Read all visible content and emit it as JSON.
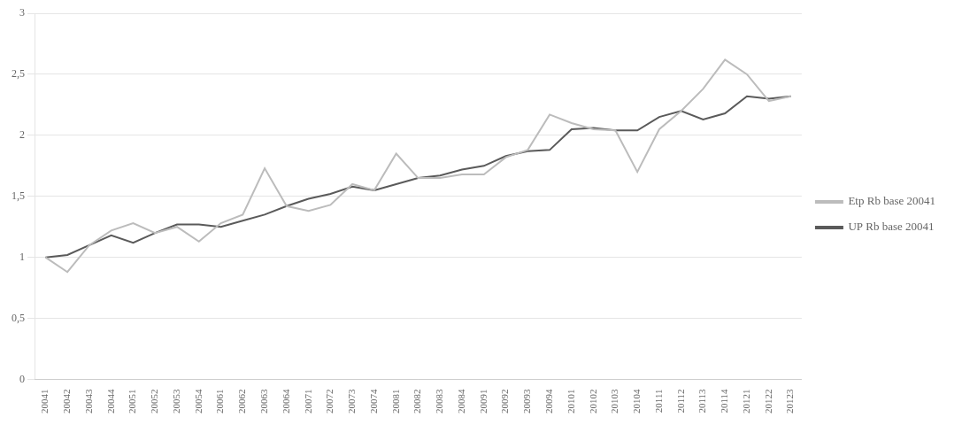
{
  "chart_data": {
    "type": "line",
    "categories": [
      "20041",
      "20042",
      "20043",
      "20044",
      "20051",
      "20052",
      "20053",
      "20054",
      "20061",
      "20062",
      "20063",
      "20064",
      "20071",
      "20072",
      "20073",
      "20074",
      "20081",
      "20082",
      "20083",
      "20084",
      "20091",
      "20092",
      "20093",
      "20094",
      "20101",
      "20102",
      "20103",
      "20104",
      "20111",
      "20112",
      "20113",
      "20114",
      "20121",
      "20122",
      "20123"
    ],
    "series": [
      {
        "name": "Etp Rb base 20041",
        "color": "#bcbcbc",
        "values": [
          1.0,
          0.88,
          1.1,
          1.22,
          1.28,
          1.2,
          1.25,
          1.13,
          1.28,
          1.35,
          1.73,
          1.42,
          1.38,
          1.43,
          1.6,
          1.55,
          1.85,
          1.65,
          1.65,
          1.68,
          1.68,
          1.82,
          1.88,
          2.17,
          2.1,
          2.05,
          2.04,
          1.7,
          2.05,
          2.2,
          2.38,
          2.62,
          2.5,
          2.28,
          2.32
        ]
      },
      {
        "name": "UP Rb base 20041",
        "color": "#5a5a5a",
        "values": [
          1.0,
          1.02,
          1.1,
          1.18,
          1.12,
          1.2,
          1.27,
          1.27,
          1.25,
          1.3,
          1.35,
          1.42,
          1.48,
          1.52,
          1.58,
          1.55,
          1.6,
          1.65,
          1.67,
          1.72,
          1.75,
          1.83,
          1.87,
          1.88,
          2.05,
          2.06,
          2.04,
          2.04,
          2.15,
          2.2,
          2.13,
          2.18,
          2.32,
          2.3,
          2.32
        ]
      }
    ],
    "ylim": [
      0,
      3.0
    ],
    "yticks": [
      0,
      {
        "value": 0.5,
        "label": "0,5"
      },
      1,
      {
        "value": 1.5,
        "label": "1,5"
      },
      2,
      {
        "value": 2.5,
        "label": "2,5"
      },
      3
    ],
    "grid": "y",
    "legend": "right"
  }
}
